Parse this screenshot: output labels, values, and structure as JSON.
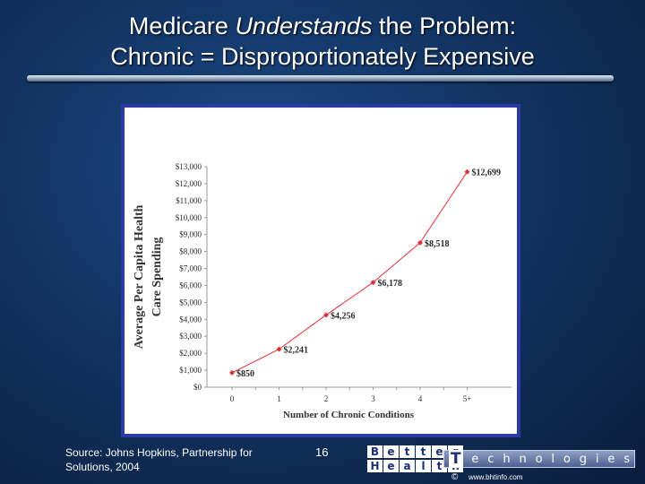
{
  "slide": {
    "title_pre": "Medicare ",
    "title_em": "Understands",
    "title_post": " the Problem:",
    "title_line2": "Chronic = Disproportionately Expensive",
    "source": "Source: Johns Hopkins, Partnership for Solutions, 2004",
    "page_number": "16",
    "logo": {
      "row1": [
        "B",
        "e",
        "t",
        "t",
        "e",
        "r"
      ],
      "row2": [
        "H",
        "e",
        "a",
        "l",
        "t",
        "h"
      ],
      "tech": [
        "T",
        "e",
        "c",
        "h",
        "n",
        "o",
        "l",
        "o",
        "g",
        "i",
        "e",
        "s"
      ],
      "copyright": "©",
      "url": "www.bhtinfo.com"
    }
  },
  "colors": {
    "frame": "#2a3aa8",
    "line": "#e03038",
    "label_text": "#2b2b2b"
  },
  "chart_data": {
    "type": "line",
    "ylabel_line1": "Average Per Capita Health",
    "ylabel_line2": "Care Spending",
    "xlabel": "Number of Chronic Conditions",
    "categories": [
      "0",
      "1",
      "2",
      "3",
      "4",
      "5+"
    ],
    "values": [
      850,
      2241,
      4256,
      6178,
      8518,
      12699
    ],
    "data_labels": [
      "$850",
      "$2,241",
      "$4,256",
      "$6,178",
      "$8,518",
      "$12,699"
    ],
    "yticks": [
      "$0",
      "$1,000",
      "$2,000",
      "$3,000",
      "$4,000",
      "$5,000",
      "$6,000",
      "$7,000",
      "$8,000",
      "$9,000",
      "$10,000",
      "$11,000",
      "$12,000",
      "$13,000"
    ],
    "ylim": [
      0,
      13000
    ],
    "grid": false,
    "legend": "none"
  }
}
